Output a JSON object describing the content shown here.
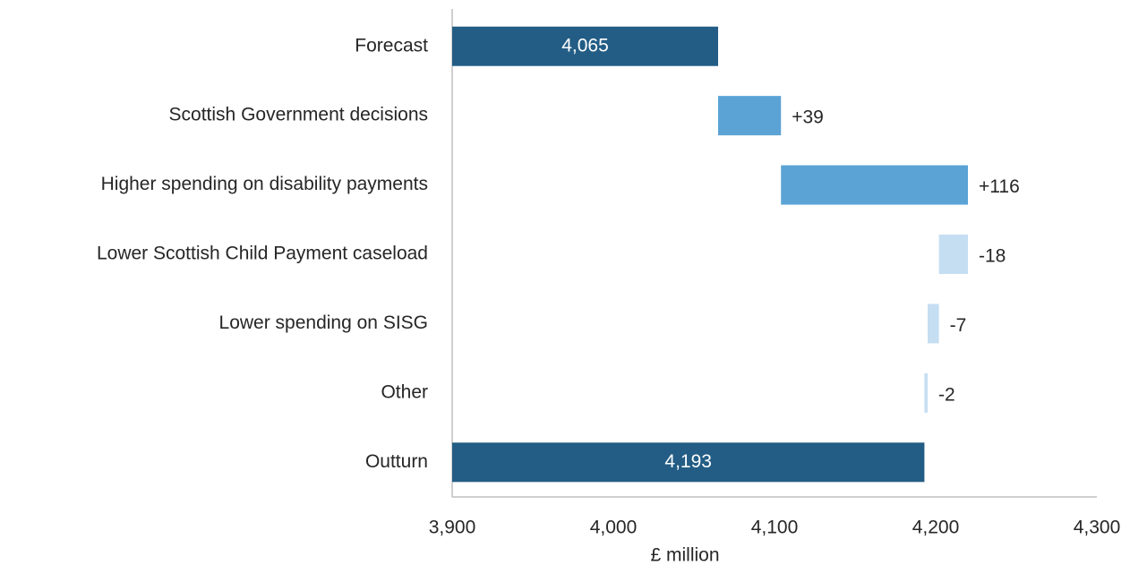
{
  "chart_data": {
    "type": "waterfall",
    "categories": [
      "Forecast",
      "Scottish Government decisions",
      "Higher spending on disability payments",
      "Lower Scottish Child Payment caseload",
      "Lower spending on SISG",
      "Other",
      "Outturn"
    ],
    "values": [
      4065,
      39,
      116,
      -18,
      -7,
      -2,
      4193
    ],
    "value_labels": [
      "4,065",
      "+39",
      "+116",
      "-18",
      "-7",
      "-2",
      "4,193"
    ],
    "measures": [
      "total",
      "relative",
      "relative",
      "relative",
      "relative",
      "relative",
      "total"
    ],
    "colors": {
      "total": "#235d85",
      "increase": "#5ba3d5",
      "decrease": "#c5def2"
    },
    "xlabel": "£ million",
    "xlim": [
      3900,
      4300
    ],
    "xticks": [
      {
        "value": 3900,
        "label": "3,900"
      },
      {
        "value": 4000,
        "label": "4,000"
      },
      {
        "value": 4100,
        "label": "4,100"
      },
      {
        "value": 4200,
        "label": "4,200"
      },
      {
        "value": 4300,
        "label": "4,300"
      }
    ]
  }
}
